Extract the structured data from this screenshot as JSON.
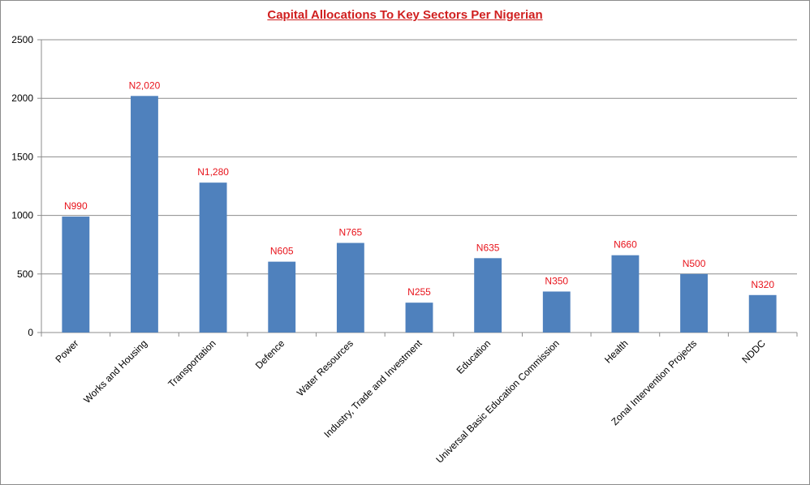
{
  "chart_data": {
    "type": "bar",
    "title": "Capital Allocations To Key Sectors Per Nigerian",
    "xlabel": "",
    "ylabel": "",
    "ylim": [
      0,
      2500
    ],
    "yticks": [
      0,
      500,
      1000,
      1500,
      2000,
      2500
    ],
    "categories": [
      "Power",
      "Works and Housing",
      "Transportation",
      "Defence",
      "Water Resources",
      "Industry, Trade and Investment",
      "Education",
      "Universal Basic Education Commission",
      "Health",
      "Zonal Intervention Projects",
      "NDDC"
    ],
    "values": [
      990,
      2020,
      1280,
      605,
      765,
      255,
      635,
      350,
      660,
      500,
      320
    ],
    "data_labels": [
      "N990",
      "N2,020",
      "N1,280",
      "N605",
      "N765",
      "N255",
      "N635",
      "N350",
      "N660",
      "N500",
      "N320"
    ],
    "grid": true,
    "legend": "none",
    "colors": {
      "bar": "#4f81bd",
      "title": "#d01f1f",
      "data_label": "#e8141c",
      "gridline": "#8c8c8c"
    }
  }
}
